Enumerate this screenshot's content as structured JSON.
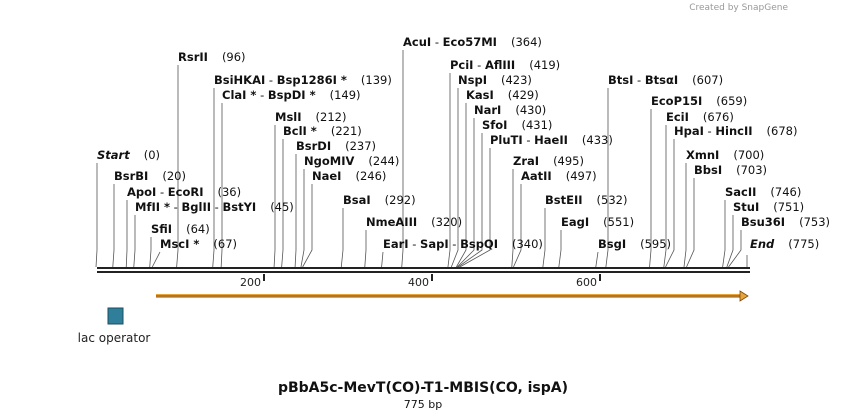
{
  "credit": "Created by SnapGene",
  "title": "pBbA5c-MevT(CO)-T1-MBIS(CO, ispA)",
  "length": "775 bp",
  "feature_label": "lac operator",
  "ticks": [
    200,
    400,
    600
  ],
  "sites": [
    {
      "names": [
        "AcuI",
        "Eco57MI"
      ],
      "position": 364,
      "label": "(364)"
    },
    {
      "names": [
        "RsrII"
      ],
      "position": 96,
      "label": "(96)"
    },
    {
      "names": [
        "PciI",
        "AflIII"
      ],
      "position": 419,
      "label": "(419)"
    },
    {
      "names": [
        "BsiHKAI",
        "Bsp1286I *"
      ],
      "position": 139,
      "label": "(139)"
    },
    {
      "names": [
        "NspI"
      ],
      "position": 423,
      "label": "(423)"
    },
    {
      "names": [
        "BtsI",
        "BtsαI"
      ],
      "position": 607,
      "label": "(607)"
    },
    {
      "names": [
        "ClaI *",
        "BspDI *"
      ],
      "position": 149,
      "label": "(149)"
    },
    {
      "names": [
        "KasI"
      ],
      "position": 429,
      "label": "(429)"
    },
    {
      "names": [
        "EcoP15I"
      ],
      "position": 659,
      "label": "(659)"
    },
    {
      "names": [
        "NarI"
      ],
      "position": 430,
      "label": "(430)"
    },
    {
      "names": [
        "MslI"
      ],
      "position": 212,
      "label": "(212)"
    },
    {
      "names": [
        "EciI"
      ],
      "position": 676,
      "label": "(676)"
    },
    {
      "names": [
        "SfoI"
      ],
      "position": 431,
      "label": "(431)"
    },
    {
      "names": [
        "BclI *"
      ],
      "position": 221,
      "label": "(221)"
    },
    {
      "names": [
        "HpaI",
        "HincII"
      ],
      "position": 678,
      "label": "(678)"
    },
    {
      "names": [
        "PluTI",
        "HaeII"
      ],
      "position": 433,
      "label": "(433)"
    },
    {
      "names": [
        "BsrDI"
      ],
      "position": 237,
      "label": "(237)"
    },
    {
      "names": [
        "Start"
      ],
      "position": 0,
      "label": "(0)"
    },
    {
      "names": [
        "XmnI"
      ],
      "position": 700,
      "label": "(700)"
    },
    {
      "names": [
        "NgoMIV"
      ],
      "position": 244,
      "label": "(244)"
    },
    {
      "names": [
        "ZraI"
      ],
      "position": 495,
      "label": "(495)"
    },
    {
      "names": [
        "BbsI"
      ],
      "position": 703,
      "label": "(703)"
    },
    {
      "names": [
        "BsrBI"
      ],
      "position": 20,
      "label": "(20)"
    },
    {
      "names": [
        "NaeI"
      ],
      "position": 246,
      "label": "(246)"
    },
    {
      "names": [
        "AatII"
      ],
      "position": 497,
      "label": "(497)"
    },
    {
      "names": [
        "ApoI",
        "EcoRI"
      ],
      "position": 36,
      "label": "(36)"
    },
    {
      "names": [
        "SacII"
      ],
      "position": 746,
      "label": "(746)"
    },
    {
      "names": [
        "BsaI"
      ],
      "position": 292,
      "label": "(292)"
    },
    {
      "names": [
        "BstEII"
      ],
      "position": 532,
      "label": "(532)"
    },
    {
      "names": [
        "MfII *",
        "BglII",
        "BstYI"
      ],
      "position": 45,
      "label": "(45)"
    },
    {
      "names": [
        "StuI"
      ],
      "position": 751,
      "label": "(751)"
    },
    {
      "names": [
        "EagI"
      ],
      "position": 551,
      "label": "(551)"
    },
    {
      "names": [
        "NmeAIII"
      ],
      "position": 320,
      "label": "(320)"
    },
    {
      "names": [
        "Bsu36I"
      ],
      "position": 753,
      "label": "(753)"
    },
    {
      "names": [
        "SfiI"
      ],
      "position": 64,
      "label": "(64)"
    },
    {
      "names": [
        "MscI *"
      ],
      "position": 67,
      "label": "(67)"
    },
    {
      "names": [
        "EarI",
        "SapI",
        "BspQI"
      ],
      "position": 340,
      "label": "(340)"
    },
    {
      "names": [
        "BsgI"
      ],
      "position": 595,
      "label": "(595)"
    },
    {
      "names": [
        "End"
      ],
      "position": 775,
      "label": "(775)"
    }
  ]
}
